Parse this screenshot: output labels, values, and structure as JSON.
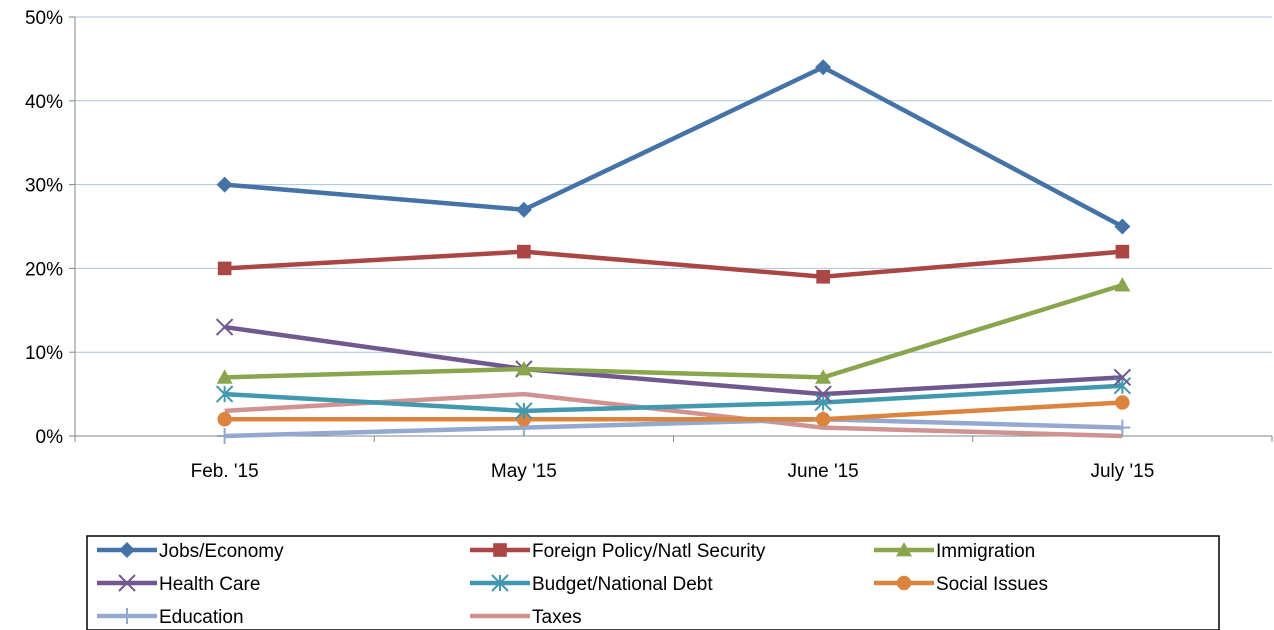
{
  "chart_data": {
    "type": "line",
    "title": "",
    "xlabel": "",
    "ylabel": "",
    "categories": [
      "Feb. '15",
      "May '15",
      "June '15",
      "July '15"
    ],
    "ylim": [
      0,
      50
    ],
    "y_ticks": [
      0,
      10,
      20,
      30,
      40,
      50
    ],
    "y_tick_labels": [
      "0%",
      "10%",
      "20%",
      "30%",
      "40%",
      "50%"
    ],
    "y_unit": "%",
    "grid": "horizontal",
    "legend_position": "bottom",
    "series": [
      {
        "name": "Jobs/Economy",
        "values": [
          30,
          27,
          44,
          25
        ],
        "color": "#4572A7",
        "marker": "diamond"
      },
      {
        "name": "Foreign Policy/Natl Security",
        "values": [
          20,
          22,
          19,
          22
        ],
        "color": "#AA4643",
        "marker": "square"
      },
      {
        "name": "Immigration",
        "values": [
          7,
          8,
          7,
          18
        ],
        "color": "#89A54E",
        "marker": "triangle"
      },
      {
        "name": "Health Care",
        "values": [
          13,
          8,
          5,
          7
        ],
        "color": "#71588F",
        "marker": "x"
      },
      {
        "name": "Budget/National Debt",
        "values": [
          5,
          3,
          4,
          6
        ],
        "color": "#4198AF",
        "marker": "star"
      },
      {
        "name": "Social Issues",
        "values": [
          2,
          2,
          2,
          4
        ],
        "color": "#DB843D",
        "marker": "circle"
      },
      {
        "name": "Education",
        "values": [
          0,
          1,
          2,
          1
        ],
        "color": "#93A9CF",
        "marker": "plus"
      },
      {
        "name": "Taxes",
        "values": [
          3,
          5,
          1,
          0
        ],
        "color": "#D19392",
        "marker": "none"
      }
    ]
  }
}
